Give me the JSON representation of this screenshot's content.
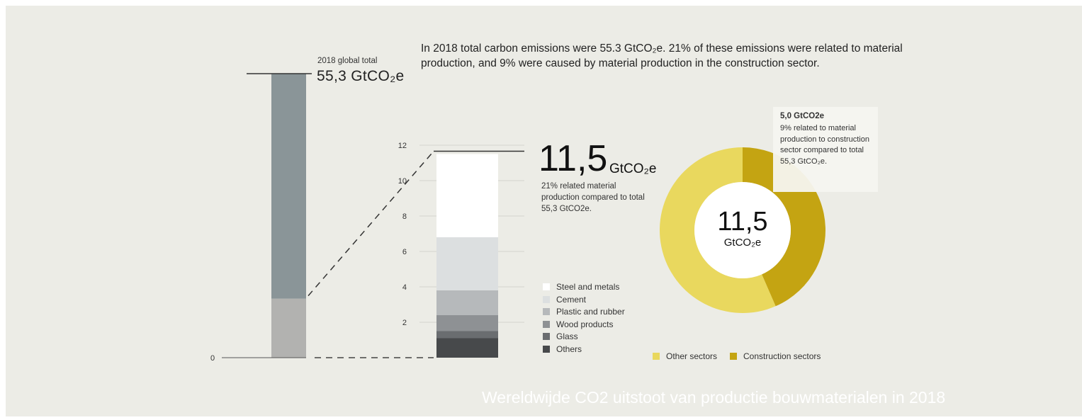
{
  "intro_text": "In 2018 total carbon emissions were 55.3 GtCO₂e. 21% of these emissions were related to material production, and 9% were caused by material production in the construction sector.",
  "left_total": {
    "label": "2018 global total",
    "value": "55,3 GtCO₂e"
  },
  "materials_total": {
    "value": "11,5",
    "unit": "GtCO₂e",
    "description": "21% related material production compared to total 55,3 GtCO2e."
  },
  "callout": {
    "title": "5,0 GtCO2e",
    "description": "9% related to material production to construction sector compared to total 55,3 GtCO₂e."
  },
  "donut_center": {
    "value": "11,5",
    "unit": "GtCO₂e"
  },
  "caption": "Wereldwijde CO2 uitstoot van productie bouwmaterialen in 2018",
  "colors": {
    "background": "#ecece6",
    "total_bar_upper": "#8a9598",
    "total_bar_material": "#b2b2b0",
    "other_sectors": "#e9d85e",
    "construction_sectors": "#c4a412"
  },
  "chart_data": [
    {
      "type": "bar",
      "categories": [
        "2018 global total"
      ],
      "series": [
        {
          "name": "",
          "values": [
            43.8
          ]
        },
        {
          "name": "",
          "values": [
            11.5
          ]
        }
      ],
      "ylim": [
        0,
        55.3
      ],
      "y_ticks": [
        "0"
      ]
    },
    {
      "type": "bar",
      "categories": [
        ""
      ],
      "series": [
        {
          "name": "Others",
          "values": [
            1.1
          ],
          "color": "#47494b"
        },
        {
          "name": "Glass",
          "values": [
            0.4
          ],
          "color": "#6a6d70"
        },
        {
          "name": "Wood products",
          "values": [
            0.9
          ],
          "color": "#8e9194"
        },
        {
          "name": "Plastic and rubber",
          "values": [
            1.4
          ],
          "color": "#b6b9bb"
        },
        {
          "name": "Cement",
          "values": [
            3.0
          ],
          "color": "#dcdfe0"
        },
        {
          "name": "Steel and metals",
          "values": [
            4.7
          ],
          "color": "#ffffff"
        }
      ],
      "ylim": [
        0,
        12
      ],
      "y_ticks": [
        2,
        4,
        6,
        8,
        10,
        12
      ],
      "legend_order": [
        "Steel and metals",
        "Cement",
        "Plastic and rubber",
        "Wood products",
        "Glass",
        "Others"
      ]
    },
    {
      "type": "pie",
      "donut": true,
      "labels": [
        "Other sectors",
        "Construction sectors"
      ],
      "values": [
        6.5,
        5.0
      ],
      "colors": [
        "#e9d85e",
        "#c4a412"
      ],
      "legend_placement": "bottom"
    }
  ]
}
